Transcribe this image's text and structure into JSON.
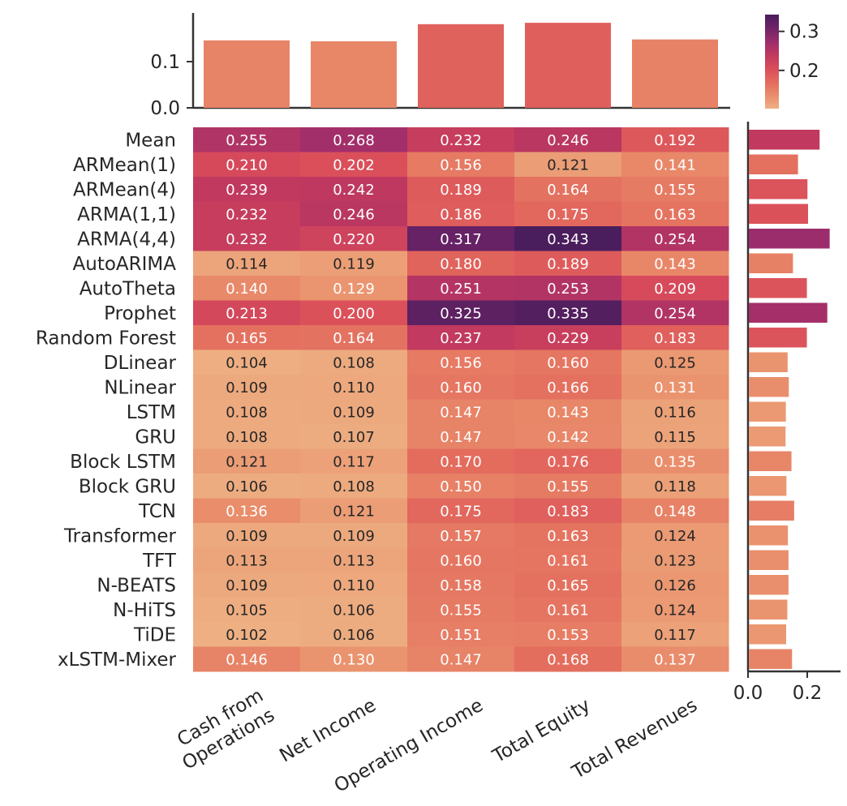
{
  "chart_data": {
    "type": "heatmap",
    "title": "",
    "columns": [
      "Cash from Operations",
      "Net Income",
      "Operating Income",
      "Total Equity",
      "Total Revenues"
    ],
    "column_label_lines": [
      [
        "Cash from",
        "Operations"
      ],
      [
        "Net Income"
      ],
      [
        "Operating Income"
      ],
      [
        "Total Equity"
      ],
      [
        "Total Revenues"
      ]
    ],
    "rows": [
      "Mean",
      "ARMean(1)",
      "ARMean(4)",
      "ARMA(1,1)",
      "ARMA(4,4)",
      "AutoARIMA",
      "AutoTheta",
      "Prophet",
      "Random Forest",
      "DLinear",
      "NLinear",
      "LSTM",
      "GRU",
      "Block LSTM",
      "Block GRU",
      "TCN",
      "Transformer",
      "TFT",
      "N-BEATS",
      "N-HiTS",
      "TiDE",
      "xLSTM-Mixer"
    ],
    "values": [
      [
        "0.255",
        "0.268",
        "0.232",
        "0.246",
        "0.192"
      ],
      [
        "0.210",
        "0.202",
        "0.156",
        "0.121",
        "0.141"
      ],
      [
        "0.239",
        "0.242",
        "0.189",
        "0.164",
        "0.155"
      ],
      [
        "0.232",
        "0.246",
        "0.186",
        "0.175",
        "0.163"
      ],
      [
        "0.232",
        "0.220",
        "0.317",
        "0.343",
        "0.254"
      ],
      [
        "0.114",
        "0.119",
        "0.180",
        "0.189",
        "0.143"
      ],
      [
        "0.140",
        "0.129",
        "0.251",
        "0.253",
        "0.209"
      ],
      [
        "0.213",
        "0.200",
        "0.325",
        "0.335",
        "0.254"
      ],
      [
        "0.165",
        "0.164",
        "0.237",
        "0.229",
        "0.183"
      ],
      [
        "0.104",
        "0.108",
        "0.156",
        "0.160",
        "0.125"
      ],
      [
        "0.109",
        "0.110",
        "0.160",
        "0.166",
        "0.131"
      ],
      [
        "0.108",
        "0.109",
        "0.147",
        "0.143",
        "0.116"
      ],
      [
        "0.108",
        "0.107",
        "0.147",
        "0.142",
        "0.115"
      ],
      [
        "0.121",
        "0.117",
        "0.170",
        "0.176",
        "0.135"
      ],
      [
        "0.106",
        "0.108",
        "0.150",
        "0.155",
        "0.118"
      ],
      [
        "0.136",
        "0.121",
        "0.175",
        "0.183",
        "0.148"
      ],
      [
        "0.109",
        "0.109",
        "0.157",
        "0.163",
        "0.124"
      ],
      [
        "0.113",
        "0.113",
        "0.160",
        "0.161",
        "0.123"
      ],
      [
        "0.109",
        "0.110",
        "0.158",
        "0.165",
        "0.126"
      ],
      [
        "0.105",
        "0.106",
        "0.155",
        "0.161",
        "0.124"
      ],
      [
        "0.102",
        "0.106",
        "0.151",
        "0.153",
        "0.117"
      ],
      [
        "0.146",
        "0.130",
        "0.147",
        "0.168",
        "0.137"
      ]
    ],
    "top_marginal": {
      "type": "bar",
      "values": [
        0.146,
        0.144,
        0.181,
        0.184,
        0.148
      ],
      "ylim": [
        0,
        0.2
      ],
      "ticks": [
        "0.0",
        "0.1"
      ]
    },
    "right_marginal": {
      "type": "bar",
      "values": [
        0.239,
        0.166,
        0.198,
        0.2,
        0.273,
        0.149,
        0.196,
        0.265,
        0.196,
        0.131,
        0.135,
        0.125,
        0.124,
        0.144,
        0.127,
        0.153,
        0.132,
        0.134,
        0.134,
        0.13,
        0.126,
        0.146
      ],
      "xlim": [
        0,
        0.3
      ],
      "ticks": [
        "0.0",
        "0.2"
      ]
    },
    "colorbar": {
      "range": [
        0.102,
        0.343
      ],
      "ticks": [
        "0.2",
        "0.3"
      ],
      "colormap": [
        "#eeb083",
        "#e98d6b",
        "#e36b5d",
        "#d94c5a",
        "#c0395f",
        "#9b2d6c",
        "#6f2468",
        "#4a1d5c"
      ]
    }
  }
}
